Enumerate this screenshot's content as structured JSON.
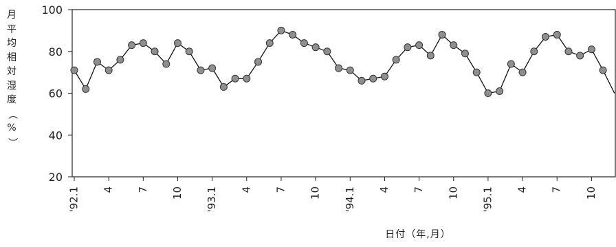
{
  "chart_data": {
    "type": "line",
    "ylabel": "月平均相対湿度（%）",
    "xlabel": "日付（年,月）",
    "ylim": [
      20,
      100
    ],
    "yticks": [
      20,
      40,
      60,
      80,
      100
    ],
    "x_tick_labels": [
      {
        "month_index": 0,
        "label": "'92.1"
      },
      {
        "month_index": 3,
        "label": "4"
      },
      {
        "month_index": 6,
        "label": "7"
      },
      {
        "month_index": 9,
        "label": "10"
      },
      {
        "month_index": 12,
        "label": "'93.1"
      },
      {
        "month_index": 15,
        "label": "4"
      },
      {
        "month_index": 18,
        "label": "7"
      },
      {
        "month_index": 21,
        "label": "10"
      },
      {
        "month_index": 24,
        "label": "'94.1"
      },
      {
        "month_index": 27,
        "label": "4"
      },
      {
        "month_index": 30,
        "label": "7"
      },
      {
        "month_index": 33,
        "label": "10"
      },
      {
        "month_index": 36,
        "label": "'95.1"
      },
      {
        "month_index": 39,
        "label": "4"
      },
      {
        "month_index": 42,
        "label": "7"
      },
      {
        "month_index": 45,
        "label": "10"
      }
    ],
    "series": [
      {
        "values": [
          71,
          62,
          75,
          71,
          76,
          83,
          84,
          80,
          74,
          84,
          80,
          71,
          72,
          63,
          67,
          67,
          75,
          84,
          90,
          88,
          84,
          82,
          80,
          72,
          71,
          66,
          67,
          68,
          76,
          82,
          83,
          78,
          88,
          83,
          79,
          70,
          60,
          61,
          74,
          70,
          80,
          87,
          88,
          80,
          78,
          81,
          71,
          60
        ]
      }
    ],
    "grid": false,
    "marker": "circle",
    "colors": {
      "line": "#111111",
      "marker_fill": "#8f8f8f",
      "marker_stroke": "#333333",
      "frame": "#222222"
    }
  }
}
